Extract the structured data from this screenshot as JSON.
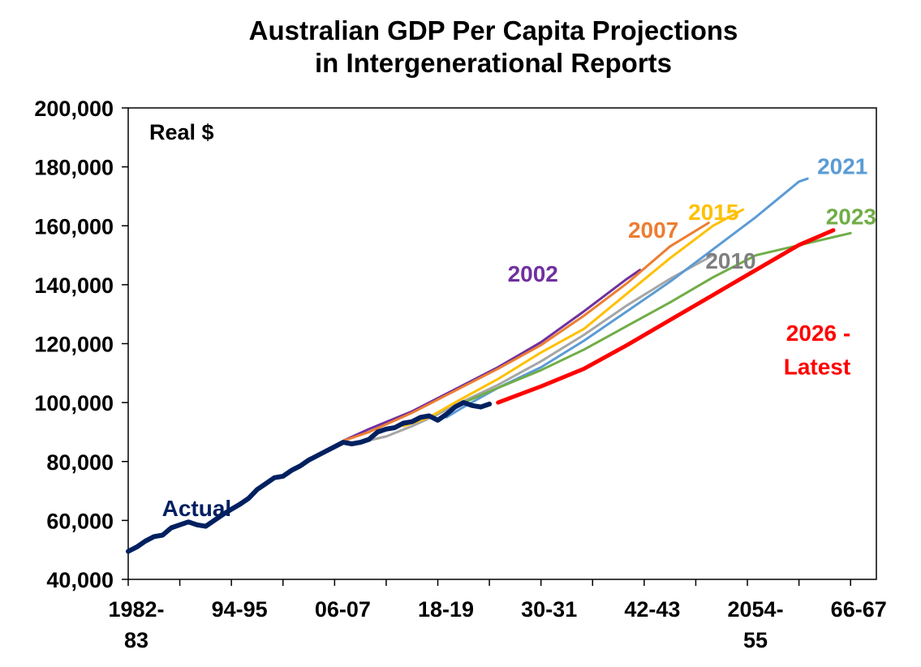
{
  "chart_data": {
    "type": "line",
    "title_lines": [
      "Australian GDP Per Capita Projections",
      "in Intergenerational Reports"
    ],
    "unit_label": "Real $",
    "ylim": [
      40000,
      200000
    ],
    "yticks": [
      40000,
      60000,
      80000,
      100000,
      120000,
      140000,
      160000,
      180000,
      200000
    ],
    "ytick_labels": [
      "40,000",
      "60,000",
      "80,000",
      "100,000",
      "120,000",
      "140,000",
      "160,000",
      "180,000",
      "200,000"
    ],
    "xlim": [
      1982,
      2069
    ],
    "xtick_labels": [
      {
        "x": 1982,
        "lines": [
          "1982-",
          "83"
        ]
      },
      {
        "x": 1994,
        "lines": [
          "94-95"
        ]
      },
      {
        "x": 2006,
        "lines": [
          "06-07"
        ]
      },
      {
        "x": 2018,
        "lines": [
          "18-19"
        ]
      },
      {
        "x": 2030,
        "lines": [
          "30-31"
        ]
      },
      {
        "x": 2042,
        "lines": [
          "42-43"
        ]
      },
      {
        "x": 2054,
        "lines": [
          "2054-",
          "55"
        ]
      },
      {
        "x": 2066,
        "lines": [
          "66-67"
        ]
      }
    ],
    "grid": false,
    "series": [
      {
        "name": "2002",
        "color": "#7030A0",
        "width": 3,
        "points": [
          [
            2007,
            87000
          ],
          [
            2010,
            91000
          ],
          [
            2015,
            97000
          ],
          [
            2020,
            104500
          ],
          [
            2025,
            112000
          ],
          [
            2030,
            120500
          ],
          [
            2035,
            131000
          ],
          [
            2040,
            142000
          ],
          [
            2041.5,
            145000
          ]
        ]
      },
      {
        "name": "2007",
        "color": "#ED7D31",
        "width": 3,
        "points": [
          [
            2007,
            87000
          ],
          [
            2010,
            90000
          ],
          [
            2015,
            96500
          ],
          [
            2020,
            104000
          ],
          [
            2025,
            111500
          ],
          [
            2030,
            119500
          ],
          [
            2035,
            129500
          ],
          [
            2040,
            140500
          ],
          [
            2045,
            153000
          ],
          [
            2049.5,
            161000
          ]
        ]
      },
      {
        "name": "2010",
        "color": "#A6A6A6",
        "width": 3,
        "points": [
          [
            2009,
            86500
          ],
          [
            2012,
            88500
          ],
          [
            2015,
            92000
          ],
          [
            2018,
            96000
          ],
          [
            2021,
            100500
          ],
          [
            2025,
            106000
          ],
          [
            2030,
            114000
          ],
          [
            2035,
            123000
          ],
          [
            2040,
            133000
          ],
          [
            2045,
            142000
          ],
          [
            2050,
            150000
          ]
        ]
      },
      {
        "name": "2015",
        "color": "#FFC000",
        "width": 3,
        "points": [
          [
            2014,
            92000
          ],
          [
            2017,
            95000
          ],
          [
            2020,
            100000
          ],
          [
            2025,
            108000
          ],
          [
            2030,
            117000
          ],
          [
            2035,
            125000
          ],
          [
            2040,
            137000
          ],
          [
            2045,
            149000
          ],
          [
            2050,
            160000
          ],
          [
            2053.5,
            165500
          ]
        ]
      },
      {
        "name": "2021",
        "color": "#5B9BD5",
        "width": 3,
        "points": [
          [
            2019,
            95000
          ],
          [
            2021,
            98500
          ],
          [
            2025,
            105000
          ],
          [
            2030,
            112000
          ],
          [
            2035,
            121000
          ],
          [
            2040,
            131000
          ],
          [
            2045,
            141000
          ],
          [
            2050,
            152000
          ],
          [
            2055,
            163000
          ],
          [
            2060,
            175000
          ],
          [
            2061,
            176000
          ]
        ]
      },
      {
        "name": "2023",
        "color": "#70AD47",
        "width": 3,
        "points": [
          [
            2021,
            100000
          ],
          [
            2025,
            105000
          ],
          [
            2030,
            111000
          ],
          [
            2035,
            118000
          ],
          [
            2040,
            126000
          ],
          [
            2045,
            134000
          ],
          [
            2050,
            142500
          ],
          [
            2055,
            150000
          ],
          [
            2066,
            157500
          ]
        ]
      },
      {
        "name": "2026 - Latest",
        "color": "#FF0000",
        "width": 5,
        "points": [
          [
            2025,
            100000
          ],
          [
            2030,
            105500
          ],
          [
            2035,
            111500
          ],
          [
            2040,
            119500
          ],
          [
            2045,
            128000
          ],
          [
            2050,
            136500
          ],
          [
            2055,
            145000
          ],
          [
            2060,
            153500
          ],
          [
            2064,
            158500
          ]
        ]
      },
      {
        "name": "Actual",
        "color": "#002060",
        "width": 6,
        "points": [
          [
            1982,
            49500
          ],
          [
            1983,
            51000
          ],
          [
            1984,
            53000
          ],
          [
            1985,
            54500
          ],
          [
            1986,
            55000
          ],
          [
            1987,
            57500
          ],
          [
            1988,
            58500
          ],
          [
            1989,
            59500
          ],
          [
            1990,
            58500
          ],
          [
            1991,
            58000
          ],
          [
            1992,
            60000
          ],
          [
            1993,
            62000
          ],
          [
            1994,
            63800
          ],
          [
            1995,
            65500
          ],
          [
            1996,
            67500
          ],
          [
            1997,
            70500
          ],
          [
            1998,
            72500
          ],
          [
            1999,
            74500
          ],
          [
            2000,
            75000
          ],
          [
            2001,
            77000
          ],
          [
            2002,
            78500
          ],
          [
            2003,
            80500
          ],
          [
            2004,
            82000
          ],
          [
            2005,
            83500
          ],
          [
            2006,
            85000
          ],
          [
            2007,
            86500
          ],
          [
            2008,
            86000
          ],
          [
            2009,
            86500
          ],
          [
            2010,
            87500
          ],
          [
            2011,
            90000
          ],
          [
            2012,
            91000
          ],
          [
            2013,
            91500
          ],
          [
            2014,
            93000
          ],
          [
            2015,
            93500
          ],
          [
            2016,
            95000
          ],
          [
            2017,
            95500
          ],
          [
            2018,
            94000
          ],
          [
            2019,
            96000
          ],
          [
            2020,
            98500
          ],
          [
            2021,
            100000
          ],
          [
            2022,
            99000
          ],
          [
            2023,
            98500
          ],
          [
            2024,
            99500
          ]
        ]
      }
    ],
    "labels": [
      {
        "text": "2002",
        "color": "#7030A0",
        "x": 2032,
        "y": 141000
      },
      {
        "text": "2007",
        "color": "#ED7D31",
        "x": 2046,
        "y": 156000
      },
      {
        "text": "2015",
        "color": "#FFC000",
        "x": 2053,
        "y": 162000
      },
      {
        "text": "2021",
        "color": "#5B9BD5",
        "x": 2068,
        "y": 177500
      },
      {
        "text": "2023",
        "color": "#70AD47",
        "x": 2069,
        "y": 160500
      },
      {
        "text": "2010",
        "color": "#7F7F7F",
        "x": 2055,
        "y": 145500
      },
      {
        "text": "2026 -",
        "color": "#FF0000",
        "x": 2066,
        "y": 121000
      },
      {
        "text": "Latest",
        "color": "#FF0000",
        "x": 2066,
        "y": 109500
      },
      {
        "text": "Actual",
        "color": "#002060",
        "x": 1994,
        "y": 61500
      }
    ]
  }
}
